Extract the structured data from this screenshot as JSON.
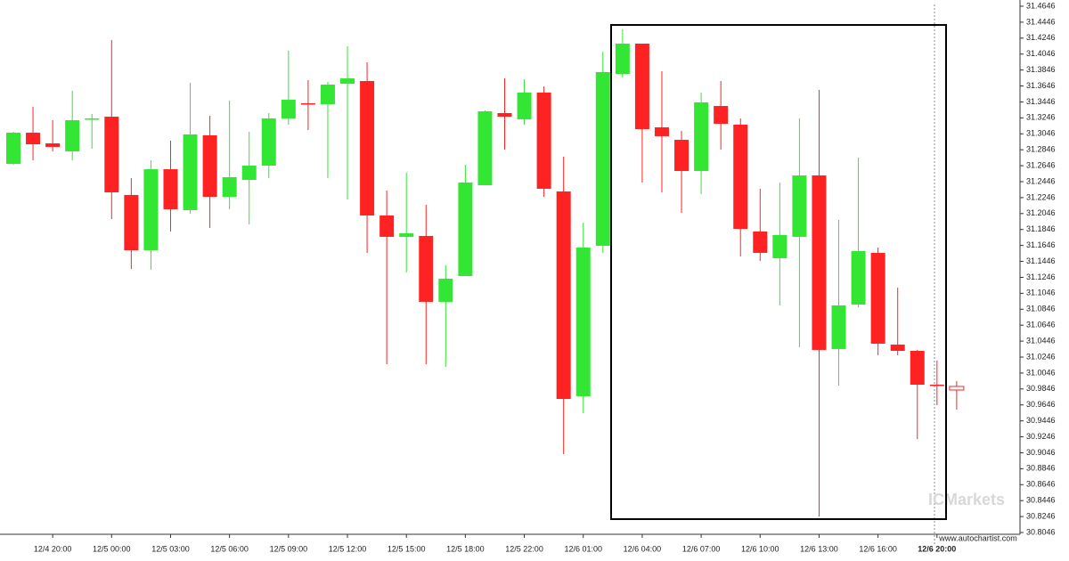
{
  "chart_data": {
    "type": "candlestick",
    "categories": [
      null,
      null,
      "12/4 20:00",
      null,
      null,
      "12/5 00:00",
      null,
      null,
      "12/5 03:00",
      null,
      null,
      "12/5 06:00",
      null,
      null,
      "12/5 09:00",
      null,
      null,
      "12/5 12:00",
      null,
      null,
      "12/5 15:00",
      null,
      null,
      "12/5 18:00",
      null,
      null,
      "12/5 22:00",
      null,
      null,
      "12/6 01:00",
      null,
      null,
      "12/6 04:00",
      null,
      null,
      "12/6 07:00",
      null,
      null,
      "12/6 10:00",
      null,
      null,
      "12/6 13:00",
      null,
      null,
      "12/6 16:00",
      null,
      null,
      "12/6 20:00",
      null
    ],
    "open": [
      31.2669,
      31.306,
      31.2926,
      31.2826,
      31.3233,
      31.3261,
      31.2279,
      31.1586,
      31.2602,
      31.2089,
      31.3027,
      31.2256,
      31.2468,
      31.2647,
      31.3239,
      31.3429,
      31.3418,
      31.3674,
      31.3708,
      31.2022,
      31.1754,
      31.1765,
      31.0939,
      31.1262,
      31.2401,
      31.3306,
      31.3228,
      31.3563,
      31.2323,
      30.9755,
      31.1642,
      31.3797,
      31.4177,
      31.3127,
      31.2971,
      31.258,
      31.3395,
      31.3161,
      31.1821,
      31.1486,
      31.1754,
      31.2524,
      31.0347,
      31.0905,
      31.1553,
      31.0403,
      31.0324,
      30.99,
      30.9878
    ],
    "high": [
      31.3071,
      31.3384,
      31.3217,
      31.3585,
      31.3295,
      31.4222,
      31.2491,
      31.2714,
      31.296,
      31.3686,
      31.3272,
      31.3462,
      31.3071,
      31.3306,
      31.4088,
      31.3719,
      31.3697,
      31.4143,
      31.3942,
      31.2334,
      31.2558,
      31.2156,
      31.1396,
      31.2658,
      31.3339,
      31.3741,
      31.373,
      31.3641,
      31.2759,
      31.1932,
      31.4076,
      31.4356,
      31.4177,
      31.3831,
      31.3083,
      31.3563,
      31.3708,
      31.3239,
      31.2357,
      31.2435,
      31.3239,
      31.3596,
      31.1966,
      31.2748,
      31.162,
      31.1117,
      31.0336,
      31.0202,
      30.9945
    ],
    "low": [
      31.266,
      31.2714,
      31.2826,
      31.2714,
      31.2859,
      31.1977,
      31.1352,
      31.1341,
      31.1821,
      31.2044,
      31.1865,
      31.21,
      31.191,
      31.2491,
      31.3161,
      31.3094,
      31.2491,
      31.2223,
      31.1553,
      31.0157,
      31.1307,
      31.0157,
      31.0123,
      31.1262,
      31.2401,
      31.2848,
      31.3161,
      31.2256,
      30.9029,
      30.9543,
      31.1553,
      31.3753,
      31.2435,
      31.2312,
      31.2055,
      31.229,
      31.2848,
      31.1508,
      31.1452,
      31.0894,
      31.0369,
      30.8247,
      30.9889,
      31.0872,
      31.0269,
      31.0269,
      30.9219,
      30.9643,
      30.9587
    ],
    "close": [
      31.306,
      31.2915,
      31.2882,
      31.3217,
      31.3239,
      31.2312,
      31.1586,
      31.2602,
      31.21,
      31.3038,
      31.2256,
      31.2502,
      31.2647,
      31.3239,
      31.3473,
      31.3418,
      31.3663,
      31.3741,
      31.2022,
      31.1754,
      31.1798,
      31.0939,
      31.1229,
      31.2435,
      31.3328,
      31.3261,
      31.3563,
      31.2357,
      30.9721,
      31.162,
      31.382,
      31.4177,
      31.3105,
      31.3016,
      31.258,
      31.344,
      31.3172,
      31.1854,
      31.1553,
      31.1776,
      31.2524,
      31.0336,
      31.0894,
      31.1575,
      31.0414,
      31.0324,
      30.99,
      30.9889,
      30.9833
    ],
    "up_color": "#33e633",
    "down_color": "#ff2222",
    "last_candle_hollow": true,
    "ylim": [
      30.8046,
      31.4646
    ],
    "yticks": [
      30.8046,
      30.8246,
      30.8446,
      30.8646,
      30.8846,
      30.9046,
      30.9246,
      30.9446,
      30.9646,
      30.9846,
      31.0046,
      31.0246,
      31.0446,
      31.0646,
      31.0846,
      31.1046,
      31.1246,
      31.1446,
      31.1646,
      31.1846,
      31.2046,
      31.2246,
      31.2446,
      31.2646,
      31.2846,
      31.3046,
      31.3246,
      31.3446,
      31.3646,
      31.3846,
      31.4046,
      31.4246,
      31.4446,
      31.4646
    ],
    "highlight": {
      "low": 30.8214,
      "high": 31.4411
    },
    "watermark": "ICMarkets",
    "source": "www.autochartist.com"
  }
}
